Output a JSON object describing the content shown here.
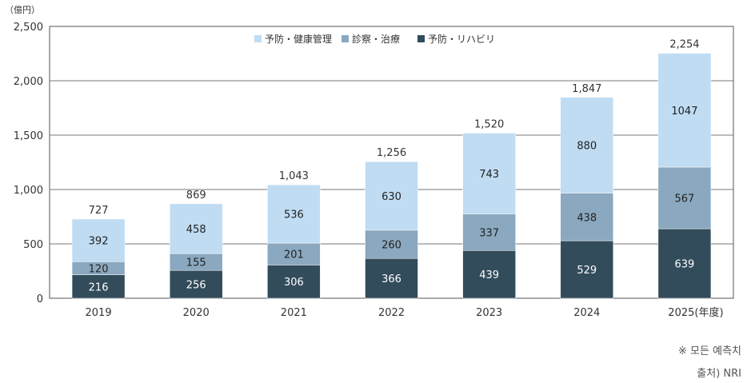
{
  "chart_data": {
    "type": "bar",
    "stacked": true,
    "unit_label": "（億円）",
    "categories": [
      "2019",
      "2020",
      "2021",
      "2022",
      "2023",
      "2024",
      "2025"
    ],
    "x_suffix_last": "(年度)",
    "ylim": [
      0,
      2500
    ],
    "yticks": [
      "0",
      "500",
      "1,000",
      "1,500",
      "2,000",
      "2,500"
    ],
    "ytick_values": [
      0,
      500,
      1000,
      1500,
      2000,
      2500
    ],
    "series": [
      {
        "name": "予防・リハビリ",
        "color": "#334c5c",
        "label_color": "#ffffff",
        "values": [
          216,
          256,
          306,
          366,
          439,
          529,
          639
        ]
      },
      {
        "name": "診察・治療",
        "color": "#8aa8bf",
        "label_color": "#222222",
        "values": [
          120,
          155,
          201,
          260,
          337,
          438,
          567
        ]
      },
      {
        "name": "予防・健康管理",
        "color": "#bfdcf3",
        "label_color": "#222222",
        "values": [
          392,
          458,
          536,
          630,
          743,
          880,
          1047
        ]
      }
    ],
    "totals": [
      "727",
      "869",
      "1,043",
      "1,256",
      "1,520",
      "1,847",
      "2,254"
    ],
    "legend_order": [
      "予防・健康管理",
      "診察・治療",
      "予防・リハビリ"
    ],
    "legend_position": "top-center"
  },
  "notes": {
    "forecast": "※ 모든 예측치",
    "source": "출처) NRI"
  }
}
